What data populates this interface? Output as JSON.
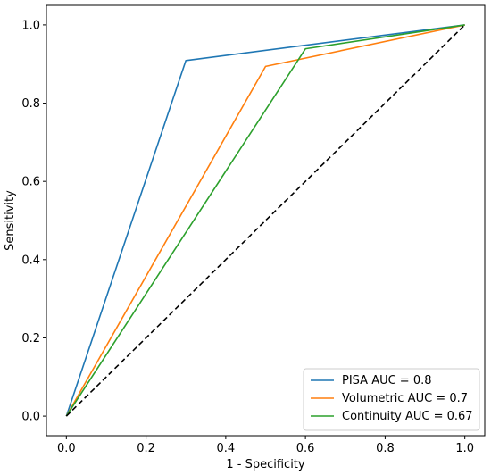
{
  "chart_data": {
    "type": "line",
    "xlabel": "1 - Specificity",
    "ylabel": "Sensitivity",
    "xlim": [
      -0.05,
      1.05
    ],
    "ylim": [
      -0.05,
      1.05
    ],
    "xticks": [
      0.0,
      0.2,
      0.4,
      0.6,
      0.8,
      1.0
    ],
    "yticks": [
      0.0,
      0.2,
      0.4,
      0.6,
      0.8,
      1.0
    ],
    "xtick_labels": [
      "0.0",
      "0.2",
      "0.4",
      "0.6",
      "0.8",
      "1.0"
    ],
    "ytick_labels": [
      "0.0",
      "0.2",
      "0.4",
      "0.6",
      "0.8",
      "1.0"
    ],
    "grid": false,
    "legend_position": "lower-right",
    "series": [
      {
        "name": "PISA AUC = 0.8",
        "color": "#1f77b4",
        "dashed": false,
        "x": [
          0.0,
          0.3,
          1.0
        ],
        "y": [
          0.0,
          0.909,
          1.0
        ]
      },
      {
        "name": "Volumetric AUC = 0.7",
        "color": "#ff7f0e",
        "dashed": false,
        "x": [
          0.0,
          0.5,
          1.0
        ],
        "y": [
          0.0,
          0.894,
          1.0
        ]
      },
      {
        "name": "Continuity AUC = 0.67",
        "color": "#2ca02c",
        "dashed": false,
        "x": [
          0.0,
          0.6,
          1.0
        ],
        "y": [
          0.0,
          0.939,
          1.0
        ]
      },
      {
        "color": "#000000",
        "dashed": true,
        "x": [
          0.0,
          1.0
        ],
        "y": [
          0.0,
          1.0
        ]
      }
    ]
  }
}
